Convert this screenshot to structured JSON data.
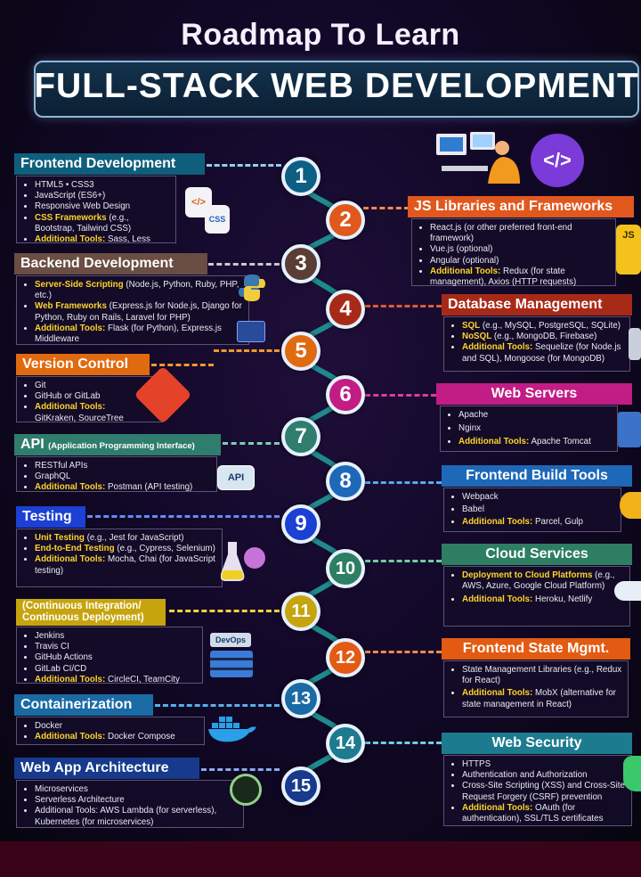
{
  "header": {
    "subtitle": "Roadmap To Learn",
    "title": "FULL-STACK WEB DEVELOPMENT"
  },
  "steps": [
    {
      "num": "1",
      "title": "Frontend Development",
      "items": [
        {
          "text": "HTML5  •  CSS3"
        },
        {
          "text": "JavaScript (ES6+)"
        },
        {
          "text": "Responsive Web Design"
        },
        {
          "label": "CSS Frameworks",
          "text": " (e.g., Bootstrap, Tailwind CSS)"
        },
        {
          "label": "Additional Tools:",
          "text": " Sass, Less"
        }
      ]
    },
    {
      "num": "2",
      "title": "JS Libraries and Frameworks",
      "items": [
        {
          "text": "React.js (or other preferred front-end framework)"
        },
        {
          "text": "Vue.js (optional)"
        },
        {
          "text": "Angular (optional)"
        },
        {
          "label": "Additional Tools:",
          "text": " Redux (for state management), Axios (HTTP requests)"
        }
      ]
    },
    {
      "num": "3",
      "title": "Backend Development",
      "items": [
        {
          "label": "Server-Side Scripting",
          "text": " (Node.js, Python, Ruby, PHP, etc.)"
        },
        {
          "label": "Web Frameworks",
          "text": " (Express.js for Node.js, Django for Python, Ruby on Rails, Laravel for PHP)"
        },
        {
          "label": "Additional Tools:",
          "text": " Flask (for Python), Express.js Middleware"
        }
      ]
    },
    {
      "num": "4",
      "title": "Database Management",
      "items": [
        {
          "label": "SQL",
          "text": " (e.g., MySQL, PostgreSQL, SQLite)"
        },
        {
          "label": "NoSQL",
          "text": " (e.g., MongoDB, Firebase)"
        },
        {
          "label": "Additional Tools:",
          "text": " Sequelize (for Node.js and SQL), Mongoose (for MongoDB)"
        }
      ]
    },
    {
      "num": "5",
      "title": "Version Control",
      "items": [
        {
          "text": "Git"
        },
        {
          "text": "GitHub or GitLab"
        },
        {
          "label": "Additional Tools:",
          "text": " GitKraken, SourceTree"
        }
      ]
    },
    {
      "num": "6",
      "title": "Web Servers",
      "items": [
        {
          "text": "Apache"
        },
        {
          "text": "Nginx"
        },
        {
          "label": "Additional Tools:",
          "text": " Apache Tomcat"
        }
      ]
    },
    {
      "num": "7",
      "title": "API",
      "title_note": "(Application Programming Interface)",
      "items": [
        {
          "text": "RESTful APIs"
        },
        {
          "text": "GraphQL"
        },
        {
          "label": "Additional Tools:",
          "text": " Postman (API testing)"
        }
      ]
    },
    {
      "num": "8",
      "title": "Frontend Build Tools",
      "items": [
        {
          "text": "Webpack"
        },
        {
          "text": "Babel"
        },
        {
          "label": "Additional Tools:",
          "text": " Parcel, Gulp"
        }
      ]
    },
    {
      "num": "9",
      "title": "Testing",
      "items": [
        {
          "label": "Unit Testing",
          "text": " (e.g., Jest for JavaScript)"
        },
        {
          "label": "End-to-End Testing",
          "text": " (e.g., Cypress, Selenium)"
        },
        {
          "label": "Additional Tools:",
          "text": " Mocha, Chai (for JavaScript testing)"
        }
      ]
    },
    {
      "num": "10",
      "title": "Cloud Services",
      "items": [
        {
          "label": "Deployment to Cloud Platforms",
          "text": " (e.g., AWS, Azure, Google Cloud Platform)"
        },
        {
          "label": "Additional Tools:",
          "text": " Heroku, Netlify"
        }
      ]
    },
    {
      "num": "11",
      "title": "(Continuous Integration/ Continuous Deployment)",
      "items": [
        {
          "text": "Jenkins"
        },
        {
          "text": "Travis CI"
        },
        {
          "text": "GitHub Actions"
        },
        {
          "text": "GitLab CI/CD"
        },
        {
          "label": "Additional Tools:",
          "text": " CircleCI, TeamCity"
        }
      ]
    },
    {
      "num": "12",
      "title": "Frontend State Mgmt.",
      "items": [
        {
          "text": "State Management Libraries (e.g., Redux for React)"
        },
        {
          "label": "Additional Tools:",
          "text": " MobX (alternative for state management in React)"
        }
      ]
    },
    {
      "num": "13",
      "title": "Containerization",
      "items": [
        {
          "text": "Docker"
        },
        {
          "label": "Additional Tools:",
          "text": " Docker Compose"
        }
      ]
    },
    {
      "num": "14",
      "title": "Web Security",
      "items": [
        {
          "text": "HTTPS"
        },
        {
          "text": "Authentication and Authorization"
        },
        {
          "text": "Cross-Site Scripting (XSS) and Cross-Site Request Forgery (CSRF) prevention"
        },
        {
          "label": "Additional Tools:",
          "text": " OAuth (for authentication), SSL/TLS certificates"
        }
      ]
    },
    {
      "num": "15",
      "title": "Web App Architecture",
      "items": [
        {
          "text": "Microservices"
        },
        {
          "text": "Serverless Architecture"
        },
        {
          "text": "Additional Tools: AWS Lambda (for serverless), Kubernetes (for microservices)"
        }
      ]
    }
  ],
  "icons": {
    "code": "</>",
    "js": "JS",
    "js_braces": "{ }",
    "api": "API",
    "devops": "DevOps",
    "html": "</>",
    "css": "CSS"
  },
  "colors": {
    "frontend": "#0f5f7c",
    "js": "#e0581e",
    "backend": "#6a4d43",
    "database": "#a72a18",
    "version": "#e06a10",
    "servers": "#c21c85",
    "api": "#2f7d6c",
    "build": "#1e68b8",
    "testing": "#1c3fd4",
    "cloud": "#2d7e62",
    "cicd": "#c6a40e",
    "state": "#e35a12",
    "container": "#1a6aa3",
    "security": "#1d7b8f",
    "architecture": "#173a8c"
  }
}
